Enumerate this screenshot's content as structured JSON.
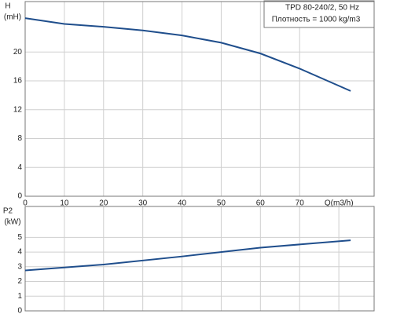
{
  "chart_data": [
    {
      "type": "line",
      "title": "TPD 80-240/2, 50 Hz",
      "subtitle": "Плотность = 1000 kg/m3",
      "ylabel": "H",
      "yunit": "(mH)",
      "xlabel": "Q(m3/h)",
      "x": [
        0,
        10,
        20,
        30,
        40,
        50,
        60,
        70,
        83
      ],
      "series": [
        {
          "color": "#1f4e8c",
          "values": [
            24.7,
            23.9,
            23.5,
            23.0,
            22.3,
            21.3,
            19.8,
            17.7,
            14.6
          ]
        }
      ],
      "xlim": [
        0,
        89
      ],
      "xticks": [
        0,
        10,
        20,
        30,
        40,
        50,
        60,
        70
      ],
      "ylim": [
        0,
        27
      ],
      "yticks": [
        0,
        4,
        8,
        12,
        16,
        20
      ],
      "grid": true
    },
    {
      "type": "line",
      "ylabel": "P2",
      "yunit": "(kW)",
      "x": [
        0,
        20,
        40,
        60,
        83
      ],
      "series": [
        {
          "color": "#1f4e8c",
          "values": [
            2.75,
            3.15,
            3.7,
            4.3,
            4.8
          ]
        }
      ],
      "xlim": [
        0,
        89
      ],
      "xticks": [
        0,
        10,
        20,
        30,
        40,
        50,
        60,
        70,
        80
      ],
      "ylim": [
        0,
        7.1
      ],
      "yticks": [
        0,
        1,
        2,
        3,
        4,
        5
      ],
      "grid": true
    }
  ]
}
